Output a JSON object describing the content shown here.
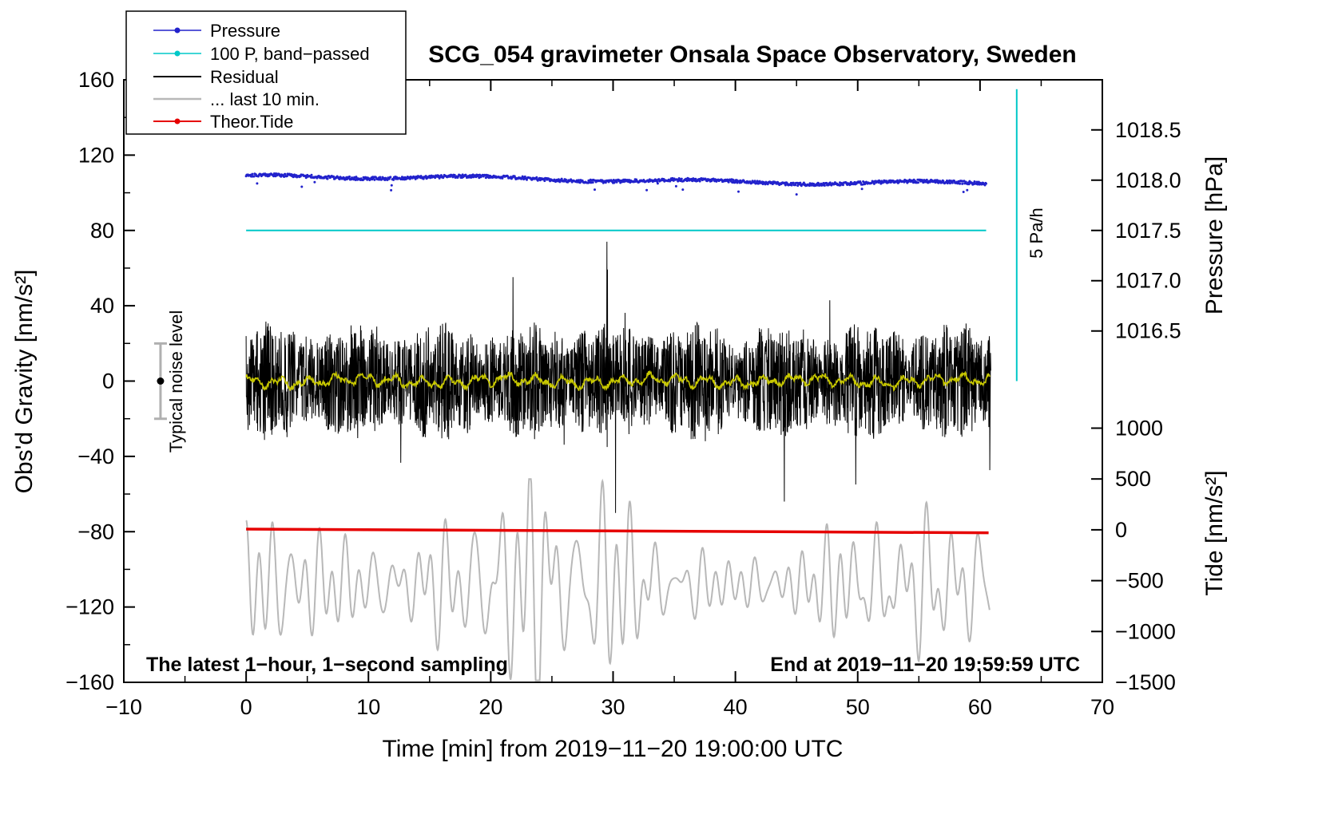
{
  "chart_data": {
    "type": "line",
    "title": "SCG_054 gravimeter Onsala Space Observatory, Sweden",
    "xlabel": "Time [min] from 2019−11−20 19:00:00 UTC",
    "ylabel_left": "Obs'd Gravity [nm/s²]",
    "ylabel_right_top": "Pressure [hPa]",
    "ylabel_right_bottom": "Tide [nm/s²]",
    "x_axis": {
      "range": [
        -10,
        70
      ],
      "tick_values": [
        -10,
        0,
        10,
        20,
        30,
        40,
        50,
        60,
        70
      ],
      "tick_labels": [
        "−10",
        "0",
        "10",
        "20",
        "30",
        "40",
        "50",
        "60",
        "70"
      ],
      "minor_tick_step": 5
    },
    "y_left_axis": {
      "range": [
        -160,
        160
      ],
      "tick_values": [
        -160,
        -120,
        -80,
        -40,
        0,
        40,
        80,
        120,
        160
      ],
      "tick_labels": [
        "−160",
        "−120",
        "−80",
        "−40",
        "0",
        "40",
        "80",
        "120",
        "160"
      ],
      "minor_tick_step": 20
    },
    "pressure_axis": {
      "tick_values": [
        1018.5,
        1018.0,
        1017.5,
        1017.0,
        1016.5
      ],
      "tick_labels": [
        "1018.5",
        "1018.0",
        "1017.5",
        "1017.0",
        "1016.5"
      ],
      "gravity_units_per_hpa": 53.4,
      "gravity_at_1017_5_hpa": 80
    },
    "tide_axis": {
      "tick_values": [
        1000,
        500,
        0,
        -500,
        -1000,
        -1500
      ],
      "tick_labels": [
        "1000",
        "500",
        "0",
        "−500",
        "−1000",
        "−1500"
      ],
      "gravity_at_zero_tide": -79,
      "gravity_units_per_tide_unit": 0.054
    },
    "legend": {
      "items": [
        {
          "label": "Pressure",
          "color": "#2222cc",
          "marker": "dot"
        },
        {
          "label": "100 P, band−passed",
          "color": "#00c8c8",
          "marker": "dot"
        },
        {
          "label": "Residual",
          "color": "#000000",
          "marker": "line"
        },
        {
          "label": "... last 10 min.",
          "color": "#b8b8b8",
          "marker": "line"
        },
        {
          "label": "Theor.Tide",
          "color": "#e60000",
          "marker": "dot"
        }
      ]
    },
    "series": [
      {
        "name": "Pressure",
        "color": "#2222cc",
        "style": "dots",
        "x_min": 0,
        "x_max": 60.5,
        "gravity_start": 108.6,
        "gravity_end": 105.0,
        "hpa_start": 1018.04,
        "hpa_end": 1017.97,
        "noise_amplitude": 1.7,
        "dip_x": 11.8
      },
      {
        "name": "100 P, band−passed",
        "color": "#00c8c8",
        "style": "line",
        "x_min": 0,
        "x_max": 60.5,
        "gravity_value": 80
      },
      {
        "name": "Residual",
        "color": "#000000",
        "style": "noise",
        "x_min": 0,
        "x_max": 60.9,
        "center": 0,
        "typical_amplitude": 28,
        "max_peak": 74,
        "max_peak_x": 29.5,
        "min_peak": -70
      },
      {
        "name": "... last 10 min.",
        "color": "#b8b8b8",
        "style": "smooth-noise",
        "x_min": 0,
        "x_max": 60.8,
        "center_gravity": -108,
        "peak_amplitude": 50,
        "min_gravity": -159,
        "max_gravity": -52
      },
      {
        "name": "Theor.Tide",
        "color": "#e60000",
        "style": "thick-line",
        "x_min": 0,
        "x_max": 60.7,
        "gravity_start": -78.6,
        "gravity_end": -80.6,
        "tide_start": 7,
        "tide_end": -30
      },
      {
        "name": "Residual smoothed (yellow)",
        "color": "#c8c800",
        "style": "line",
        "x_min": 0,
        "x_max": 60.8,
        "center": 0,
        "amplitude": 4
      }
    ],
    "annotations": {
      "noise_level_label": "Typical noise level",
      "noise_level_marker": {
        "x": -7,
        "center_gravity": 0,
        "half_range_gravity": 20
      },
      "pressure_rate_scale_bar": {
        "label": "5 Pa/h",
        "x": 63,
        "gravity_top": 155,
        "gravity_bottom": 0
      },
      "bottom_left": "The latest 1−hour, 1−second sampling",
      "bottom_right": "End at 2019−11−20 19:59:59 UTC"
    }
  }
}
